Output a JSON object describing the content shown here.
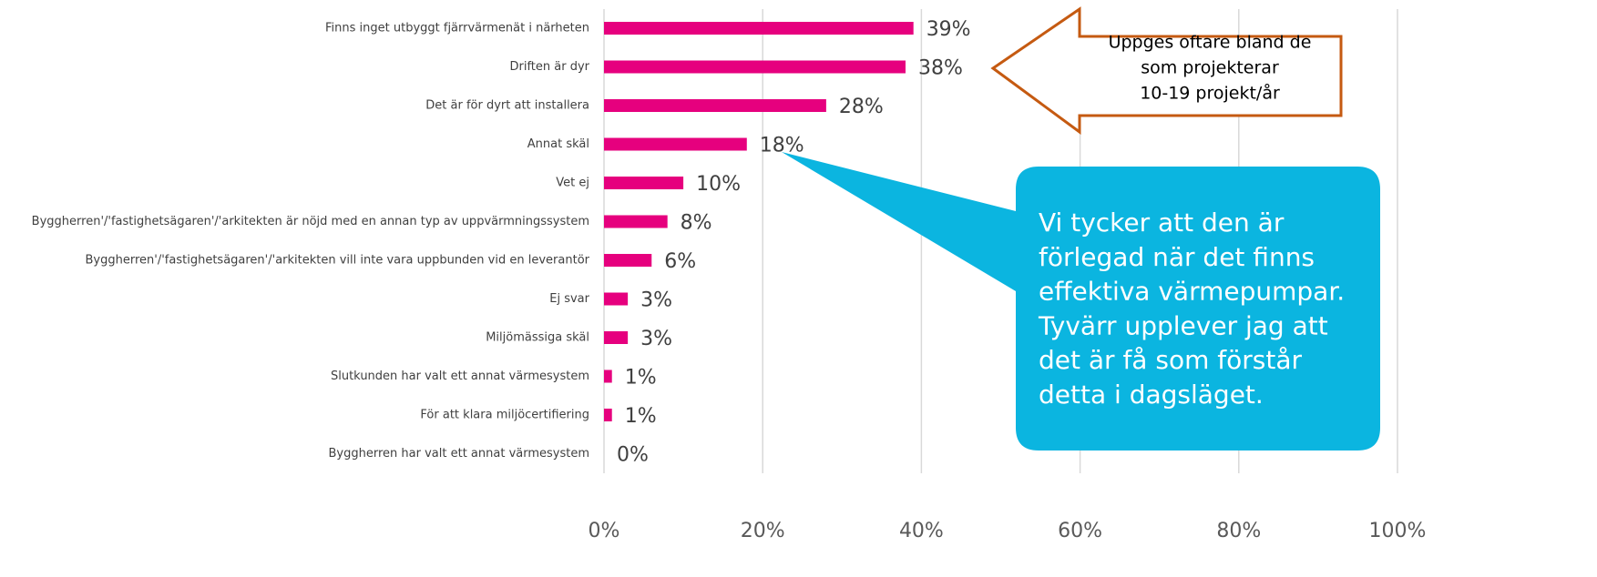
{
  "chart_data": {
    "type": "bar",
    "orientation": "horizontal",
    "categories": [
      "Finns inget utbyggt fjärrvärmenät i närheten",
      "Driften är dyr",
      "Det är för dyrt att installera",
      "Annat skäl",
      "Vet ej",
      "Byggherren'/'fastighetsägaren'/'arkitekten är nöjd med en annan typ av uppvärmningssystem",
      "Byggherren'/'fastighetsägaren'/'arkitekten vill inte vara uppbunden vid en leverantör",
      "Ej svar",
      "Miljömässiga skäl",
      "Slutkunden har valt ett annat värmesystem",
      "För att klara miljöcertifiering",
      "Byggherren har valt ett annat värmesystem"
    ],
    "values": [
      39,
      38,
      28,
      18,
      10,
      8,
      6,
      3,
      3,
      1,
      1,
      0
    ],
    "value_labels": [
      "39%",
      "38%",
      "28%",
      "18%",
      "10%",
      "8%",
      "6%",
      "3%",
      "3%",
      "1%",
      "1%",
      "0%"
    ],
    "color": "#e6007e",
    "xlim": [
      0,
      100
    ],
    "xticks": [
      {
        "value": 0,
        "label": "0%"
      },
      {
        "value": 20,
        "label": "20%"
      },
      {
        "value": 40,
        "label": "40%"
      },
      {
        "value": 60,
        "label": "60%"
      },
      {
        "value": 80,
        "label": "80%"
      },
      {
        "value": 100,
        "label": "100%"
      }
    ],
    "grid": true,
    "annotations": [
      {
        "lines": [
          "Uppges oftare bland de",
          "som projekterar",
          "10-19 projekt/år"
        ]
      },
      {
        "lines": [
          "Vi tycker att den är",
          "förlegad när det finns",
          "effektiva värmepumpar.",
          "Tyvärr upplever jag att",
          "det är få som förstår",
          "detta i dagsläget."
        ]
      }
    ]
  }
}
